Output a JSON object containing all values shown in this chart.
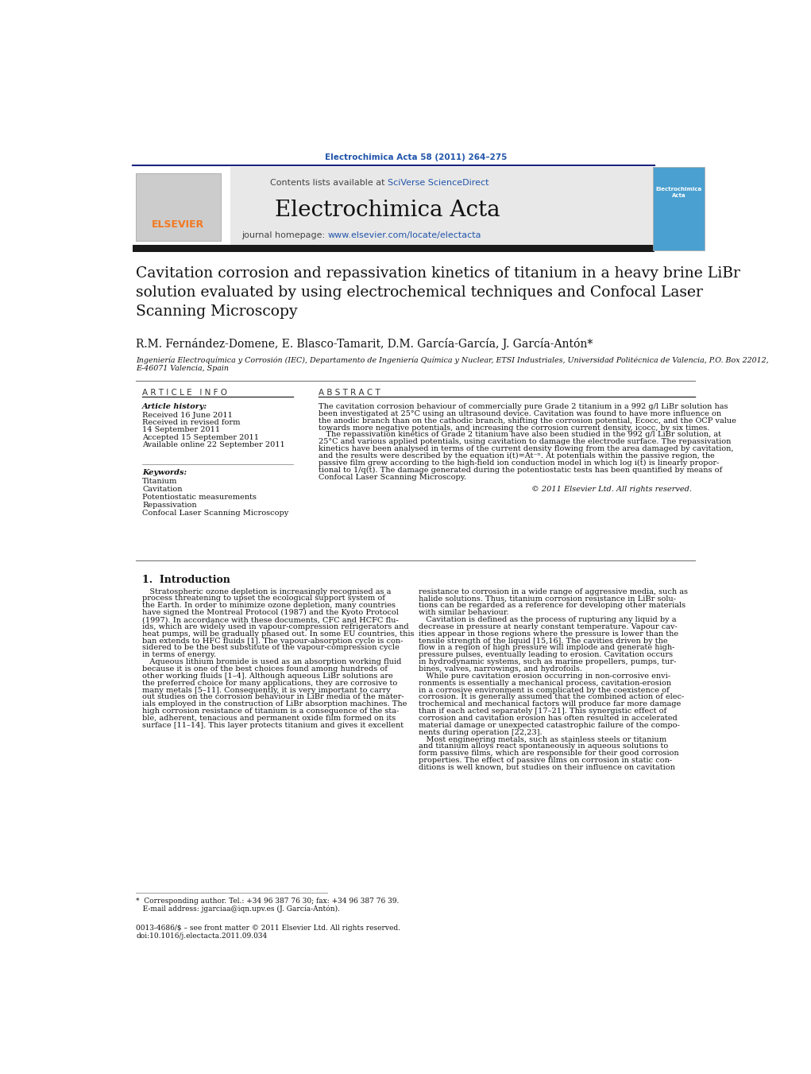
{
  "page_width": 10.21,
  "page_height": 13.51,
  "dpi": 100,
  "bg_color": "#ffffff",
  "top_citation": "Electrochimica Acta 58 (2011) 264–275",
  "top_citation_color": "#2255aa",
  "contents_text": "Contents lists available at ",
  "sciverse_text": "SciVerse ScienceDirect",
  "sciverse_color": "#2255aa",
  "journal_name": "Electrochimica Acta",
  "journal_homepage_prefix": "journal homepage: ",
  "journal_homepage_url": "www.elsevier.com/locate/electacta",
  "journal_homepage_url_color": "#2255aa",
  "header_bg": "#e8e8e8",
  "dark_bar_color": "#1a1a1a",
  "paper_title": "Cavitation corrosion and repassivation kinetics of titanium in a heavy brine LiBr\nsolution evaluated by using electrochemical techniques and Confocal Laser\nScanning Microscopy",
  "authors": "R.M. Fernández-Domene, E. Blasco-Tamarit, D.M. García-García, J. García-Antón*",
  "affiliation_line1": "Ingeniería Electroquímica y Corrosión (IEC), Departamento de Ingeniería Química y Nuclear, ETSI Industriales, Universidad Politécnica de Valencia, P.O. Box 22012,",
  "affiliation_line2": "E-46071 Valencia, Spain",
  "article_info_header": "A R T I C L E   I N F O",
  "abstract_header": "A B S T R A C T",
  "article_history_label": "Article history:",
  "article_history": [
    "Received 16 June 2011",
    "Received in revised form",
    "14 September 2011",
    "Accepted 15 September 2011",
    "Available online 22 September 2011"
  ],
  "keywords_label": "Keywords:",
  "keywords": [
    "Titanium",
    "Cavitation",
    "Potentiostatic measurements",
    "Repassivation",
    "Confocal Laser Scanning Microscopy"
  ],
  "copyright_text": "© 2011 Elsevier Ltd. All rights reserved.",
  "intro_header": "1.  Introduction",
  "footnote_text": "*  Corresponding author. Tel.: +34 96 387 76 30; fax: +34 96 387 76 39.",
  "footnote_text2": "   E-mail address: jgarciaa@iqn.upv.es (J. García-Antón).",
  "issn_text": "0013-4686/$ – see front matter © 2011 Elsevier Ltd. All rights reserved.",
  "doi_text": "doi:10.1016/j.electacta.2011.09.034",
  "elsevier_orange": "#f47920",
  "link_blue": "#2255aa",
  "navy": "#1a237e"
}
